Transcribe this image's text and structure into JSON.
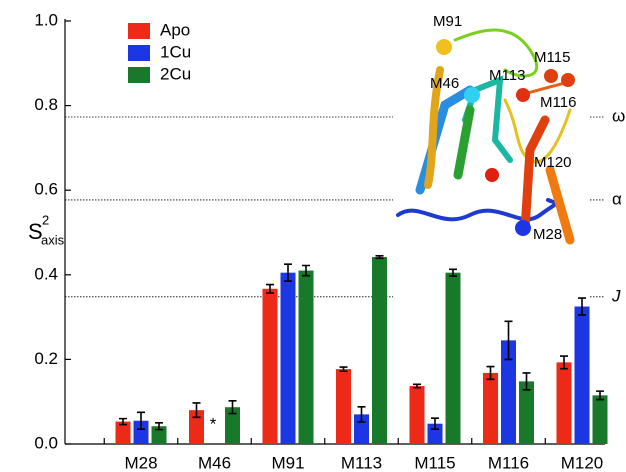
{
  "chart_data": {
    "type": "bar",
    "y_label": "S",
    "y_label_sup": "2",
    "y_label_sub": "axis",
    "categories": [
      "M28",
      "M46",
      "M91",
      "M113",
      "M115",
      "M116",
      "M120"
    ],
    "series": [
      {
        "name": "Apo",
        "color": "#ec2a17",
        "values": [
          0.053,
          0.08,
          0.367,
          0.177,
          0.137,
          0.168,
          0.193
        ],
        "errors": [
          0.007,
          0.017,
          0.01,
          0.005,
          0.004,
          0.015,
          0.015
        ]
      },
      {
        "name": "1Cu",
        "color": "#1c36e4",
        "values": [
          0.055,
          null,
          0.405,
          0.07,
          0.048,
          0.245,
          0.325
        ],
        "errors": [
          0.02,
          null,
          0.02,
          0.018,
          0.013,
          0.045,
          0.02
        ]
      },
      {
        "name": "2Cu",
        "color": "#19792a",
        "values": [
          0.042,
          0.087,
          0.41,
          0.442,
          0.405,
          0.148,
          0.115
        ],
        "errors": [
          0.008,
          0.015,
          0.012,
          0.003,
          0.008,
          0.02,
          0.01
        ]
      }
    ],
    "ylim": [
      0,
      1.0
    ],
    "yticks": [
      {
        "value": 0,
        "label": "0.0"
      },
      {
        "value": 0.2,
        "label": "0.2"
      },
      {
        "value": 0.4,
        "label": "0.4"
      },
      {
        "value": 0.6,
        "label": "0.6"
      },
      {
        "value": 0.8,
        "label": "0.8"
      },
      {
        "value": 1.0,
        "label": "1.0"
      }
    ],
    "reference_lines": [
      {
        "value": 0.773,
        "label": "ω"
      },
      {
        "value": 0.577,
        "label": "α"
      },
      {
        "value": 0.348,
        "label": "J"
      }
    ],
    "annotations": [
      "*"
    ],
    "inset_labels": [
      "M91",
      "M46",
      "M113",
      "M115",
      "M116",
      "M120",
      "M28"
    ],
    "legend": "upper left"
  }
}
